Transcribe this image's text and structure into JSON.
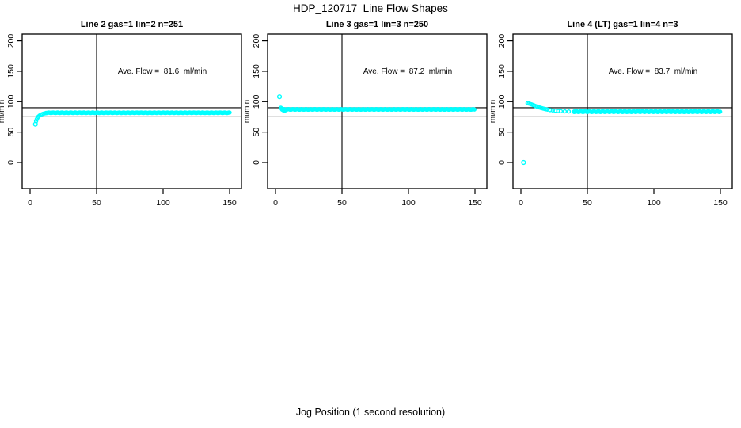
{
  "page": {
    "title": "HDP_120717  Line Flow Shapes",
    "xlabel": "Jog Position (1 second resolution)",
    "background_color": "#ffffff",
    "axis_color": "#000000"
  },
  "chart_data": [
    {
      "type": "scatter",
      "title": "Line 2 gas=1 lin=2 n=251",
      "annotation": "Ave. Flow =  81.6  ml/min",
      "ave_flow_ml_min": 81.6,
      "n": 251,
      "ylabel": "ml/min",
      "x_ticks": [
        0,
        50,
        100,
        150
      ],
      "x_tick_labels": [
        "0",
        "50",
        "100",
        "150"
      ],
      "y_ticks": [
        0,
        50,
        100,
        150,
        200
      ],
      "y_tick_labels": [
        "0",
        "50",
        "100",
        "150",
        "200"
      ],
      "xlim": [
        0,
        158
      ],
      "ylim": [
        -40,
        210
      ],
      "ref_lines_y": [
        90,
        75
      ],
      "vline_x": 50,
      "point_color": "#00ffff",
      "open_points": [
        [
          4,
          63
        ]
      ],
      "curve_points": [
        [
          4.5,
          68
        ],
        [
          5,
          71
        ],
        [
          5.5,
          73
        ],
        [
          6,
          75
        ],
        [
          7,
          77
        ],
        [
          8,
          78.5
        ],
        [
          9,
          79.5
        ],
        [
          10,
          80.3
        ],
        [
          11,
          80.8
        ],
        [
          12,
          81.2
        ]
      ],
      "flat": {
        "from": 12,
        "to": 150,
        "value": 81.8,
        "jitter": 0.4
      }
    },
    {
      "type": "scatter",
      "title": "Line 3 gas=1 lin=3 n=250",
      "annotation": "Ave. Flow =  87.2  ml/min",
      "ave_flow_ml_min": 87.2,
      "n": 250,
      "ylabel": "ml/min",
      "x_ticks": [
        0,
        50,
        100,
        150
      ],
      "x_tick_labels": [
        "0",
        "50",
        "100",
        "150"
      ],
      "y_ticks": [
        0,
        50,
        100,
        150,
        200
      ],
      "y_tick_labels": [
        "0",
        "50",
        "100",
        "150",
        "200"
      ],
      "xlim": [
        0,
        158
      ],
      "ylim": [
        -40,
        210
      ],
      "ref_lines_y": [
        90,
        75
      ],
      "vline_x": 50,
      "point_color": "#00ffff",
      "open_points": [
        [
          3,
          108
        ]
      ],
      "curve_points": [
        [
          4,
          90
        ],
        [
          4.5,
          88.5
        ],
        [
          5,
          87.6
        ],
        [
          6,
          85.6
        ],
        [
          7,
          85.2
        ],
        [
          8,
          86.2
        ]
      ],
      "flat": {
        "from": 5,
        "to": 150,
        "value": 87.3,
        "jitter": 0.4
      }
    },
    {
      "type": "scatter",
      "title": "Line 4 (LT) gas=1 lin=4 n=3",
      "annotation": "Ave. Flow =  83.7  ml/min",
      "ave_flow_ml_min": 83.7,
      "n": 3,
      "ylabel": "ml/min",
      "x_ticks": [
        0,
        50,
        100,
        150
      ],
      "x_tick_labels": [
        "0",
        "50",
        "100",
        "150"
      ],
      "y_ticks": [
        0,
        50,
        100,
        150,
        200
      ],
      "y_tick_labels": [
        "0",
        "50",
        "100",
        "150",
        "200"
      ],
      "xlim": [
        0,
        158
      ],
      "ylim": [
        -40,
        210
      ],
      "ref_lines_y": [
        90,
        75
      ],
      "vline_x": 50,
      "point_color": "#00ffff",
      "open_points": [
        [
          2,
          0
        ]
      ],
      "curve_points": [
        [
          5,
          97.5
        ],
        [
          6,
          97
        ],
        [
          7,
          96.3
        ],
        [
          8,
          95.5
        ],
        [
          9,
          94.6
        ],
        [
          10,
          93.7
        ],
        [
          11,
          92.8
        ],
        [
          12,
          92
        ],
        [
          13,
          91.2
        ],
        [
          14,
          90.5
        ],
        [
          15,
          89.8
        ],
        [
          16,
          89.2
        ],
        [
          17,
          88.6
        ],
        [
          18,
          88
        ],
        [
          19,
          87.5
        ],
        [
          20,
          87
        ],
        [
          22,
          86.2
        ],
        [
          24,
          85.6
        ],
        [
          26,
          85.1
        ],
        [
          28,
          84.7
        ],
        [
          30,
          84.4
        ],
        [
          33,
          84.1
        ],
        [
          36,
          83.9
        ],
        [
          40,
          83.8
        ]
      ],
      "flat": {
        "from": 40,
        "to": 150,
        "value": 83.7,
        "jitter": 0.6
      }
    }
  ]
}
